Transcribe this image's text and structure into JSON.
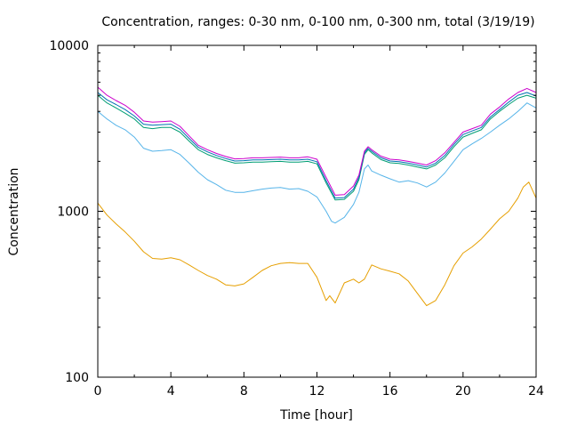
{
  "chart_data": {
    "type": "line",
    "title": "Concentration, ranges: 0-30 nm, 0-100 nm, 0-300 nm, total (3/19/19)",
    "xlabel": "Time [hour]",
    "ylabel": "Concentration",
    "xlim": [
      0,
      24
    ],
    "ylim": [
      100,
      10000
    ],
    "yscale": "log",
    "grid": false,
    "legend": "none",
    "x_ticks": [
      "0",
      "4",
      "8",
      "12",
      "16",
      "20",
      "24"
    ],
    "y_ticks": [
      "100",
      "1000",
      "10000"
    ],
    "series": [
      {
        "color": "#e69f00",
        "x": [
          0,
          0.5,
          1,
          1.5,
          2,
          2.5,
          3,
          3.5,
          4,
          4.5,
          5,
          5.5,
          6,
          6.5,
          7,
          7.5,
          8,
          8.5,
          9,
          9.5,
          10,
          10.5,
          11,
          11.5,
          12,
          12.5,
          12.7,
          13,
          13.5,
          14,
          14.3,
          14.6,
          15,
          15.5,
          16,
          16.5,
          17,
          17.5,
          18,
          18.5,
          19,
          19.5,
          20,
          20.5,
          21,
          21.5,
          22,
          22.5,
          23,
          23.3,
          23.6,
          24
        ],
        "y": [
          1120,
          950,
          840,
          750,
          660,
          570,
          520,
          515,
          525,
          510,
          475,
          440,
          410,
          390,
          360,
          355,
          365,
          400,
          440,
          470,
          485,
          490,
          485,
          485,
          400,
          290,
          310,
          280,
          370,
          390,
          370,
          390,
          475,
          450,
          435,
          420,
          380,
          320,
          270,
          290,
          360,
          470,
          560,
          610,
          680,
          780,
          900,
          1000,
          1200,
          1400,
          1500,
          1200
        ]
      },
      {
        "color": "#56b4e9",
        "x": [
          0,
          0.5,
          1,
          1.5,
          2,
          2.5,
          3,
          3.5,
          4,
          4.5,
          5,
          5.5,
          6,
          6.5,
          7,
          7.5,
          8,
          8.5,
          9,
          9.5,
          10,
          10.5,
          11,
          11.5,
          12,
          12.5,
          12.8,
          13,
          13.5,
          14,
          14.3,
          14.6,
          14.8,
          15,
          15.5,
          16,
          16.5,
          17,
          17.5,
          18,
          18.5,
          19,
          19.5,
          20,
          20.5,
          21,
          21.5,
          22,
          22.5,
          23,
          23.5,
          24
        ],
        "y": [
          4000,
          3600,
          3300,
          3100,
          2800,
          2400,
          2300,
          2320,
          2350,
          2200,
          1950,
          1720,
          1550,
          1450,
          1340,
          1300,
          1300,
          1330,
          1360,
          1380,
          1390,
          1360,
          1370,
          1320,
          1220,
          1000,
          870,
          850,
          920,
          1100,
          1300,
          1800,
          1900,
          1750,
          1650,
          1570,
          1500,
          1530,
          1480,
          1400,
          1500,
          1700,
          2000,
          2350,
          2550,
          2750,
          3000,
          3300,
          3600,
          4000,
          4500,
          4200
        ]
      },
      {
        "color": "#009e73",
        "x": [
          0,
          0.5,
          1,
          1.5,
          2,
          2.5,
          3,
          3.5,
          4,
          4.5,
          5,
          5.5,
          6,
          6.5,
          7,
          7.5,
          8,
          8.5,
          9,
          9.5,
          10,
          10.5,
          11,
          11.5,
          12,
          12.5,
          13,
          13.5,
          14,
          14.3,
          14.6,
          14.8,
          15,
          15.5,
          16,
          16.5,
          17,
          17.5,
          18,
          18.5,
          19,
          19.5,
          20,
          20.5,
          21,
          21.5,
          22,
          22.5,
          23,
          23.5,
          24
        ],
        "y": [
          5000,
          4500,
          4200,
          3900,
          3600,
          3200,
          3150,
          3200,
          3200,
          3000,
          2650,
          2350,
          2200,
          2100,
          2020,
          1950,
          1960,
          1980,
          1980,
          1990,
          2000,
          1980,
          1980,
          2000,
          1930,
          1480,
          1170,
          1180,
          1320,
          1550,
          2200,
          2350,
          2250,
          2050,
          1960,
          1940,
          1900,
          1850,
          1800,
          1900,
          2100,
          2450,
          2800,
          2950,
          3100,
          3600,
          4000,
          4400,
          4800,
          5000,
          4800
        ]
      },
      {
        "color": "#0072b2",
        "x": [
          0,
          0.5,
          1,
          1.5,
          2,
          2.5,
          3,
          3.5,
          4,
          4.5,
          5,
          5.5,
          6,
          6.5,
          7,
          7.5,
          8,
          8.5,
          9,
          9.5,
          10,
          10.5,
          11,
          11.5,
          12,
          12.5,
          13,
          13.5,
          14,
          14.3,
          14.6,
          14.8,
          15,
          15.5,
          16,
          16.5,
          17,
          17.5,
          18,
          18.5,
          19,
          19.5,
          20,
          20.5,
          21,
          21.5,
          22,
          22.5,
          23,
          23.5,
          24
        ],
        "y": [
          5200,
          4700,
          4400,
          4100,
          3750,
          3350,
          3300,
          3330,
          3350,
          3120,
          2750,
          2430,
          2280,
          2170,
          2080,
          2010,
          2020,
          2040,
          2040,
          2050,
          2060,
          2040,
          2040,
          2060,
          1990,
          1530,
          1200,
          1210,
          1360,
          1600,
          2250,
          2400,
          2300,
          2100,
          2010,
          1990,
          1950,
          1900,
          1850,
          1950,
          2170,
          2530,
          2900,
          3050,
          3200,
          3700,
          4100,
          4550,
          5000,
          5200,
          4950
        ]
      },
      {
        "color": "#cc00cc",
        "x": [
          0,
          0.5,
          1,
          1.5,
          2,
          2.5,
          3,
          3.5,
          4,
          4.5,
          5,
          5.5,
          6,
          6.5,
          7,
          7.5,
          8,
          8.5,
          9,
          9.5,
          10,
          10.5,
          11,
          11.5,
          12,
          12.5,
          13,
          13.5,
          14,
          14.3,
          14.6,
          14.8,
          15,
          15.5,
          16,
          16.5,
          17,
          17.5,
          18,
          18.5,
          19,
          19.5,
          20,
          20.5,
          21,
          21.5,
          22,
          22.5,
          23,
          23.5,
          24
        ],
        "y": [
          5600,
          5000,
          4650,
          4350,
          3950,
          3500,
          3450,
          3470,
          3500,
          3250,
          2850,
          2500,
          2350,
          2230,
          2140,
          2070,
          2080,
          2100,
          2100,
          2110,
          2120,
          2100,
          2100,
          2130,
          2060,
          1600,
          1250,
          1260,
          1420,
          1650,
          2300,
          2450,
          2350,
          2150,
          2060,
          2040,
          2000,
          1950,
          1900,
          2020,
          2250,
          2600,
          3000,
          3150,
          3300,
          3850,
          4250,
          4750,
          5200,
          5500,
          5200
        ]
      }
    ]
  }
}
